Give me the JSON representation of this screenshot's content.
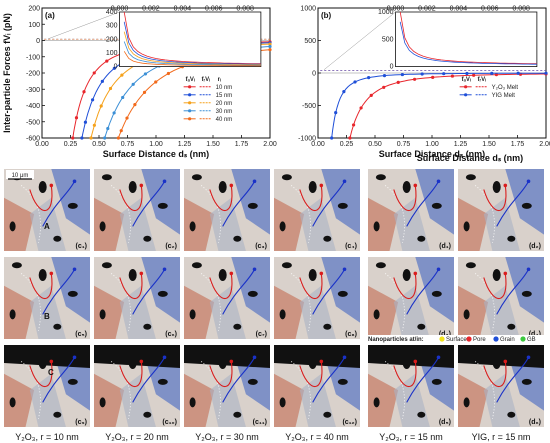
{
  "chart_data": [
    {
      "id": "a",
      "type": "line",
      "panel_label": "(a)",
      "ylabel": "Inter-particle Forces fVᵢ (pN)",
      "xlabel": "Surface Distance dₛ (nm)",
      "xlim": [
        0,
        2.0
      ],
      "ylim": [
        -600,
        200
      ],
      "xticks": [
        "0.00",
        "0.25",
        "0.50",
        "0.75",
        "1.00",
        "1.25",
        "1.50",
        "1.75",
        "2.00"
      ],
      "yticks": [
        "-600",
        "-500",
        "-400",
        "-300",
        "-200",
        "-100",
        "0",
        "100",
        "200"
      ],
      "legend": {
        "headers": [
          "fₐVᵢ",
          "fᵣVᵢ",
          "rᵢ"
        ],
        "labels": [
          "10 nm",
          "15 nm",
          "20 nm",
          "30 nm",
          "40 nm"
        ]
      },
      "series_colors": [
        "#e8262c",
        "#1f4fd8",
        "#f5a11b",
        "#3b8fd6",
        "#f26a1b"
      ],
      "attractive_start": [
        0.27,
        0.35,
        0.43,
        0.55,
        0.67
      ],
      "inset": {
        "xticks": [
          "0.000",
          "0.002",
          "0.004",
          "0.006",
          "0.008"
        ],
        "yticks": [
          "0",
          "100",
          "200",
          "300",
          "400"
        ],
        "xlim": [
          0,
          0.009
        ],
        "ylim": [
          0,
          400
        ]
      }
    },
    {
      "id": "b",
      "type": "line",
      "panel_label": "(b)",
      "xlabel": "Surface Distance dₛ (nm)",
      "xlim": [
        0,
        2.0
      ],
      "ylim": [
        -1000,
        1000
      ],
      "xticks": [
        "0.00",
        "0.25",
        "0.50",
        "0.75",
        "1.00",
        "1.25",
        "1.50",
        "1.75",
        "2.00"
      ],
      "yticks": [
        "-1000",
        "-500",
        "0",
        "500",
        "1000"
      ],
      "legend": {
        "headers": [
          "fₐVᵢ",
          "fᵣVᵢ"
        ],
        "labels": [
          "Y₂O₃ Melt",
          "YIG Melt"
        ]
      },
      "series_colors": [
        "#e8262c",
        "#1f4fd8"
      ],
      "attractive_start": [
        0.28,
        0.12
      ],
      "inset": {
        "xticks": [
          "0.000",
          "0.002",
          "0.004",
          "0.006",
          "0.008"
        ],
        "yticks": [
          "0",
          "500",
          "1000"
        ],
        "xlim": [
          0,
          0.009
        ],
        "ylim": [
          0,
          1000
        ]
      }
    }
  ],
  "micrographs": {
    "scale_bar": "10 μm",
    "region_labels": [
      "A",
      "B",
      "C"
    ],
    "panel_labels_c": [
      "(c₁)",
      "(c₂)",
      "(c₃)",
      "(c₄)",
      "(c₅)",
      "(c₆)",
      "(c₇)",
      "(c₈)",
      "(c₉)",
      "(c₁₀)",
      "(c₁₁)",
      "(c₁₂)"
    ],
    "panel_labels_d": [
      "(d₁)",
      "(d₂)",
      "(d₃)",
      "(d₄)",
      "(d₅)",
      "(d₆)"
    ],
    "captions": [
      "Y₂O₃, r = 10 nm",
      "Y₂O₃, r = 20 nm",
      "Y₂O₃, r = 30 nm",
      "Y₂O₃, r = 40 nm",
      "Y₂O₃, r = 15 nm",
      "YIG, r = 15 nm"
    ],
    "np_legend": {
      "title": "Nanoparticles at/in:",
      "items": [
        {
          "label": "Surface",
          "color": "#f2e31a"
        },
        {
          "label": "Pore",
          "color": "#e8262c"
        },
        {
          "label": "Grain",
          "color": "#1f4fd8"
        },
        {
          "label": "GB",
          "color": "#3ec83e"
        }
      ]
    }
  }
}
